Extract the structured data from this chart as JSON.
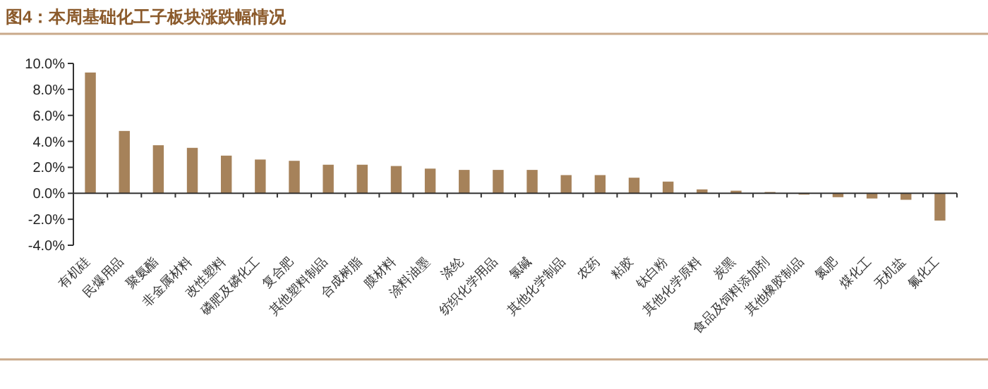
{
  "chart_data": {
    "type": "bar",
    "title": "图4：本周基础化工子板块涨跌幅情况",
    "categories": [
      "有机硅",
      "民爆用品",
      "聚氨酯",
      "非金属材料",
      "改性塑料",
      "磷肥及磷化工",
      "复合肥",
      "其他塑料制品",
      "合成树脂",
      "膜材料",
      "涂料油墨",
      "涤纶",
      "纺织化学用品",
      "氯碱",
      "其他化学制品",
      "农药",
      "粘胶",
      "钛白粉",
      "其他化学原料",
      "炭黑",
      "食品及饲料添加剂",
      "其他橡胶制品",
      "氮肥",
      "煤化工",
      "无机盐",
      "氟化工"
    ],
    "values": [
      9.3,
      4.8,
      3.7,
      3.5,
      2.9,
      2.6,
      2.5,
      2.2,
      2.2,
      2.1,
      1.9,
      1.8,
      1.8,
      1.8,
      1.4,
      1.4,
      1.2,
      0.9,
      0.3,
      0.2,
      0.1,
      -0.1,
      -0.3,
      -0.4,
      -0.5,
      -2.1
    ],
    "color": "#a6825a",
    "ylim": [
      -4,
      10
    ],
    "yticks": [
      {
        "value": -4,
        "label": "-4.0%"
      },
      {
        "value": -2,
        "label": "-2.0%"
      },
      {
        "value": 0,
        "label": "0.0%"
      },
      {
        "value": 2,
        "label": "2.0%"
      },
      {
        "value": 4,
        "label": "4.0%"
      },
      {
        "value": 6,
        "label": "6.0%"
      },
      {
        "value": 8,
        "label": "8.0%"
      },
      {
        "value": 10,
        "label": "10.0%"
      }
    ]
  }
}
